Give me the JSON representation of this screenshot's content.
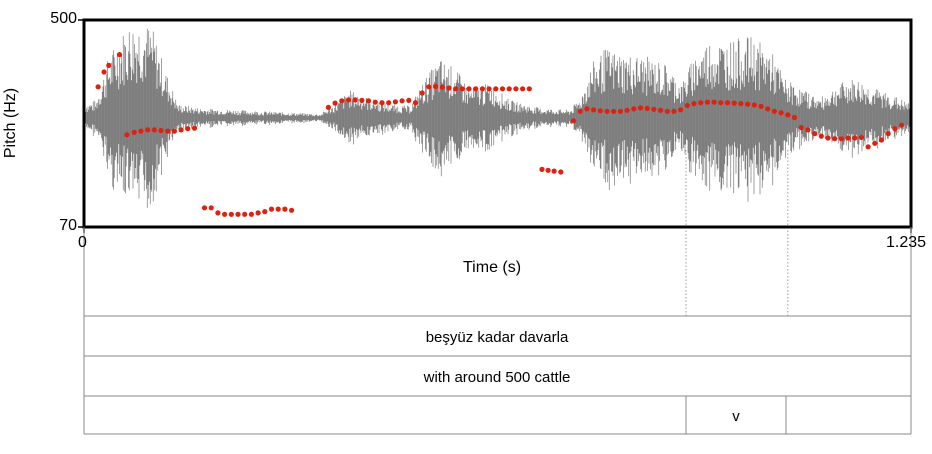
{
  "chart_data": {
    "type": "scatter",
    "title": "",
    "xlabel": "Time (s)",
    "ylabel": "Pitch (Hz)",
    "xlim": [
      0,
      1.235
    ],
    "ylim": [
      70,
      500
    ],
    "x_tick_labels": [
      "0",
      "1.235"
    ],
    "y_tick_labels": [
      "70",
      "500"
    ],
    "grid": false,
    "waveform_color": "#777777",
    "pitch_color": "#dd2211",
    "series": [
      {
        "values": [
          {
            "x": 0.021,
            "y": 265
          },
          {
            "x": 0.03,
            "y": 305
          },
          {
            "x": 0.037,
            "y": 325
          },
          {
            "x": 0.053,
            "y": 360
          },
          {
            "x": 0.064,
            "y": 168
          },
          {
            "x": 0.075,
            "y": 172
          },
          {
            "x": 0.085,
            "y": 174
          },
          {
            "x": 0.095,
            "y": 176
          },
          {
            "x": 0.105,
            "y": 176
          },
          {
            "x": 0.115,
            "y": 175
          },
          {
            "x": 0.125,
            "y": 174
          },
          {
            "x": 0.135,
            "y": 174
          },
          {
            "x": 0.145,
            "y": 176
          },
          {
            "x": 0.155,
            "y": 178
          },
          {
            "x": 0.165,
            "y": 179
          },
          {
            "x": 0.18,
            "y": 84
          },
          {
            "x": 0.19,
            "y": 84
          },
          {
            "x": 0.2,
            "y": 80
          },
          {
            "x": 0.21,
            "y": 79
          },
          {
            "x": 0.22,
            "y": 79
          },
          {
            "x": 0.23,
            "y": 79
          },
          {
            "x": 0.24,
            "y": 79
          },
          {
            "x": 0.25,
            "y": 79
          },
          {
            "x": 0.26,
            "y": 80
          },
          {
            "x": 0.27,
            "y": 81
          },
          {
            "x": 0.28,
            "y": 83
          },
          {
            "x": 0.29,
            "y": 83
          },
          {
            "x": 0.3,
            "y": 83
          },
          {
            "x": 0.31,
            "y": 82
          },
          {
            "x": 0.365,
            "y": 218
          },
          {
            "x": 0.375,
            "y": 227
          },
          {
            "x": 0.385,
            "y": 232
          },
          {
            "x": 0.395,
            "y": 234
          },
          {
            "x": 0.405,
            "y": 234
          },
          {
            "x": 0.415,
            "y": 233
          },
          {
            "x": 0.425,
            "y": 232
          },
          {
            "x": 0.435,
            "y": 229
          },
          {
            "x": 0.445,
            "y": 228
          },
          {
            "x": 0.455,
            "y": 228
          },
          {
            "x": 0.465,
            "y": 230
          },
          {
            "x": 0.475,
            "y": 232
          },
          {
            "x": 0.485,
            "y": 233
          },
          {
            "x": 0.495,
            "y": 228
          },
          {
            "x": 0.505,
            "y": 250
          },
          {
            "x": 0.515,
            "y": 265
          },
          {
            "x": 0.525,
            "y": 266
          },
          {
            "x": 0.535,
            "y": 264
          },
          {
            "x": 0.545,
            "y": 262
          },
          {
            "x": 0.555,
            "y": 260
          },
          {
            "x": 0.565,
            "y": 260
          },
          {
            "x": 0.575,
            "y": 260
          },
          {
            "x": 0.585,
            "y": 260
          },
          {
            "x": 0.595,
            "y": 260
          },
          {
            "x": 0.605,
            "y": 260
          },
          {
            "x": 0.615,
            "y": 260
          },
          {
            "x": 0.625,
            "y": 260
          },
          {
            "x": 0.635,
            "y": 260
          },
          {
            "x": 0.645,
            "y": 260
          },
          {
            "x": 0.655,
            "y": 260
          },
          {
            "x": 0.665,
            "y": 260
          },
          {
            "x": 0.684,
            "y": 121
          },
          {
            "x": 0.693,
            "y": 120
          },
          {
            "x": 0.702,
            "y": 119
          },
          {
            "x": 0.712,
            "y": 118
          },
          {
            "x": 0.731,
            "y": 192
          },
          {
            "x": 0.741,
            "y": 210
          },
          {
            "x": 0.751,
            "y": 215
          },
          {
            "x": 0.761,
            "y": 213
          },
          {
            "x": 0.771,
            "y": 211
          },
          {
            "x": 0.781,
            "y": 210
          },
          {
            "x": 0.791,
            "y": 210
          },
          {
            "x": 0.801,
            "y": 210
          },
          {
            "x": 0.811,
            "y": 212
          },
          {
            "x": 0.821,
            "y": 215
          },
          {
            "x": 0.831,
            "y": 217
          },
          {
            "x": 0.841,
            "y": 216
          },
          {
            "x": 0.851,
            "y": 214
          },
          {
            "x": 0.861,
            "y": 212
          },
          {
            "x": 0.871,
            "y": 210
          },
          {
            "x": 0.881,
            "y": 210
          },
          {
            "x": 0.891,
            "y": 213
          },
          {
            "x": 0.901,
            "y": 222
          },
          {
            "x": 0.911,
            "y": 226
          },
          {
            "x": 0.921,
            "y": 228
          },
          {
            "x": 0.931,
            "y": 229
          },
          {
            "x": 0.941,
            "y": 229
          },
          {
            "x": 0.951,
            "y": 228
          },
          {
            "x": 0.961,
            "y": 228
          },
          {
            "x": 0.971,
            "y": 227
          },
          {
            "x": 0.981,
            "y": 226
          },
          {
            "x": 0.991,
            "y": 225
          },
          {
            "x": 1.001,
            "y": 223
          },
          {
            "x": 1.011,
            "y": 220
          },
          {
            "x": 1.021,
            "y": 215
          },
          {
            "x": 1.031,
            "y": 210
          },
          {
            "x": 1.041,
            "y": 207
          },
          {
            "x": 1.051,
            "y": 203
          },
          {
            "x": 1.061,
            "y": 198
          },
          {
            "x": 1.071,
            "y": 180
          },
          {
            "x": 1.081,
            "y": 176
          },
          {
            "x": 1.091,
            "y": 170
          },
          {
            "x": 1.101,
            "y": 166
          },
          {
            "x": 1.111,
            "y": 163
          },
          {
            "x": 1.121,
            "y": 162
          },
          {
            "x": 1.131,
            "y": 162
          },
          {
            "x": 1.141,
            "y": 163
          },
          {
            "x": 1.151,
            "y": 163
          },
          {
            "x": 1.161,
            "y": 164
          },
          {
            "x": 1.171,
            "y": 150
          },
          {
            "x": 1.181,
            "y": 155
          },
          {
            "x": 1.191,
            "y": 160
          },
          {
            "x": 1.201,
            "y": 170
          },
          {
            "x": 1.211,
            "y": 178
          },
          {
            "x": 1.221,
            "y": 184
          }
        ]
      }
    ],
    "boundary_times": [
      0.899,
      1.051
    ]
  },
  "tiers": [
    {
      "label": "beşyüz kadar davarla"
    },
    {
      "label": "with around 500 cattle"
    },
    {
      "label": "v"
    }
  ]
}
